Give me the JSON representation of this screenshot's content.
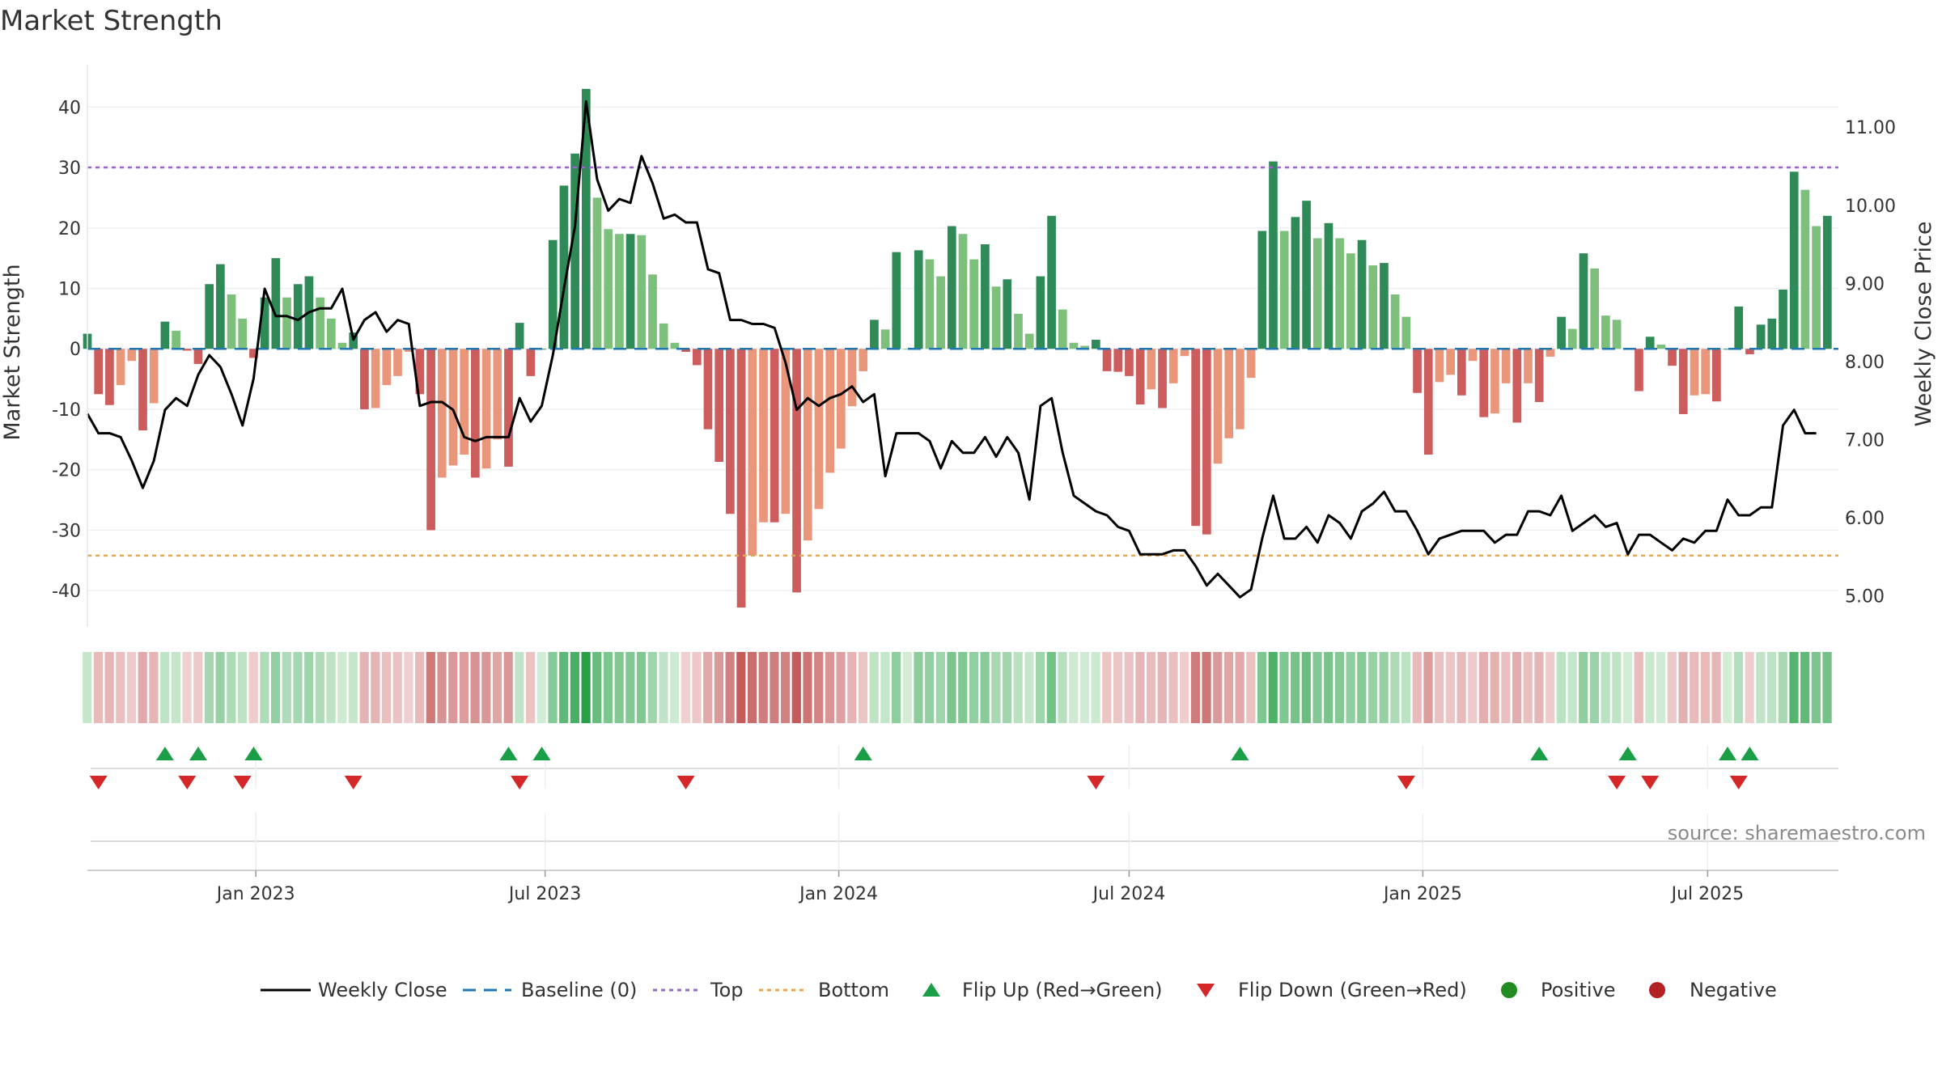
{
  "chart_data": {
    "type": "bar",
    "title": "Market Strength",
    "ylabel": "Market Strength",
    "y2label": "Weekly Close Price",
    "ylim": [
      -46,
      47
    ],
    "y2lim": [
      4.6,
      11.8
    ],
    "yticks": [
      40,
      30,
      20,
      10,
      0,
      -10,
      -20,
      -30,
      -40
    ],
    "y2ticks": [
      "11.00",
      "10.00",
      "9.00",
      "8.00",
      "7.00",
      "6.00",
      "5.00"
    ],
    "y2tick_values": [
      11,
      10,
      9,
      8,
      7,
      6,
      5
    ],
    "top_threshold": 30,
    "bottom_threshold": -34.2,
    "x_range_weeks": [
      0,
      158
    ],
    "xticks": [
      {
        "label": "Jan 2023",
        "week": 15.2
      },
      {
        "label": "Jul 2023",
        "week": 41.3
      },
      {
        "label": "Jan 2024",
        "week": 67.8
      },
      {
        "label": "Jul 2024",
        "week": 94.0
      },
      {
        "label": "Jan 2025",
        "week": 120.5
      },
      {
        "label": "Jul 2025",
        "week": 146.2
      }
    ],
    "strength": [
      2.5,
      -7.5,
      -9.3,
      -6,
      -2,
      -13.5,
      -9,
      4.5,
      3,
      -0.3,
      -2.5,
      10.7,
      14,
      9,
      5,
      -1.5,
      8.5,
      15,
      8.5,
      10.7,
      12,
      8.5,
      5,
      1,
      2.7,
      -10,
      -9.8,
      -6,
      -4.5,
      -0.5,
      -7.5,
      -30,
      -21.3,
      -19.3,
      -17.5,
      -21.3,
      -19.8,
      -15,
      -19.5,
      4.3,
      -4.5,
      0,
      18,
      27,
      32.3,
      43,
      25,
      19.8,
      19,
      19,
      18.8,
      12.3,
      4.2,
      1,
      -0.5,
      -2.7,
      -13.3,
      -18.7,
      -27.3,
      -42.8,
      -34.2,
      -28.7,
      -28.7,
      -27.3,
      -40.3,
      -31.7,
      -26.5,
      -20.5,
      -16.5,
      -9.5,
      -3.7,
      4.8,
      3.2,
      16,
      0,
      16.3,
      14.8,
      12,
      20.3,
      19,
      14.8,
      17.3,
      10.3,
      11.5,
      5.8,
      2.5,
      12,
      22,
      6.5,
      1,
      0.5,
      1.5,
      -3.7,
      -3.8,
      -4.5,
      -9.2,
      -6.7,
      -9.8,
      -5.7,
      -1.2,
      -29.3,
      -30.7,
      -19,
      -14.8,
      -13.3,
      -4.8,
      19.5,
      31,
      19.5,
      21.8,
      24.5,
      18.3,
      20.8,
      18.3,
      15.8,
      18,
      13.8,
      14.2,
      9,
      5.3,
      -7.3,
      -17.5,
      -5.5,
      -4.3,
      -7.7,
      -2,
      -11.3,
      -10.7,
      -5.7,
      -12.2,
      -5.7,
      -8.8,
      -1.3,
      5.3,
      3.3,
      15.8,
      13.3,
      5.5,
      4.8,
      0,
      -7,
      2,
      0.7,
      -2.8,
      -10.8,
      -7.7,
      -7.5,
      -8.7,
      0,
      7,
      -0.9,
      4,
      5,
      9.8,
      29.3,
      26.3,
      20.3,
      22
    ],
    "weekly_close": [
      7.33,
      7.08,
      7.08,
      7.03,
      6.73,
      6.38,
      6.73,
      7.38,
      7.53,
      7.43,
      7.83,
      8.08,
      7.93,
      7.58,
      7.18,
      7.78,
      8.93,
      8.58,
      8.58,
      8.53,
      8.63,
      8.68,
      8.68,
      8.93,
      8.28,
      8.53,
      8.63,
      8.38,
      8.53,
      8.48,
      7.43,
      7.48,
      7.48,
      7.38,
      7.03,
      6.98,
      7.03,
      7.03,
      7.03,
      7.53,
      7.23,
      7.43,
      8.08,
      8.93,
      9.73,
      11.33,
      10.33,
      9.93,
      10.08,
      10.03,
      10.63,
      10.28,
      9.83,
      9.88,
      9.78,
      9.78,
      9.18,
      9.13,
      8.53,
      8.53,
      8.48,
      8.48,
      8.43,
      7.98,
      7.38,
      7.53,
      7.43,
      7.53,
      7.58,
      7.68,
      7.48,
      7.58,
      6.53,
      7.08,
      7.08,
      7.08,
      6.98,
      6.63,
      6.98,
      6.83,
      6.83,
      7.03,
      6.78,
      7.03,
      6.83,
      6.23,
      7.43,
      7.53,
      6.83,
      6.28,
      6.18,
      6.08,
      6.03,
      5.88,
      5.83,
      5.53,
      5.53,
      5.53,
      5.58,
      5.58,
      5.38,
      5.13,
      5.28,
      5.13,
      4.98,
      5.08,
      5.73,
      6.28,
      5.73,
      5.73,
      5.88,
      5.68,
      6.03,
      5.93,
      5.73,
      6.08,
      6.18,
      6.33,
      6.08,
      6.08,
      5.83,
      5.53,
      5.73,
      5.78,
      5.83,
      5.83,
      5.83,
      5.68,
      5.78,
      5.78,
      6.08,
      6.08,
      6.03,
      6.28,
      5.83,
      5.93,
      6.03,
      5.88,
      5.93,
      5.53,
      5.78,
      5.78,
      5.68,
      5.58,
      5.73,
      5.68,
      5.83,
      5.83,
      6.23,
      6.03,
      6.03,
      6.13,
      6.13,
      7.18,
      7.38,
      7.08,
      7.08
    ],
    "flip_up_weeks": [
      7,
      10,
      15,
      38,
      41,
      70,
      104,
      131,
      139,
      148,
      150
    ],
    "flip_down_weeks": [
      1,
      9,
      14,
      24,
      39,
      54,
      91,
      119,
      138,
      141,
      149
    ],
    "legend": [
      "Weekly Close",
      "Baseline (0)",
      "Top",
      "Bottom",
      "Flip Up (Red→Green)",
      "Flip Down (Green→Red)",
      "Positive",
      "Negative"
    ],
    "annotation": "source: sharemaestro.com",
    "colors": {
      "strong_pos": "#2e8b57",
      "weak_pos": "#7cc07c",
      "strong_neg": "#cd5c5c",
      "weak_neg": "#e9967a",
      "top": "#9966cc",
      "bottom": "#e0a85a",
      "baseline": "#1f77b4",
      "close": "#000000",
      "flip_up": "#1a9e46",
      "flip_down": "#d62728",
      "positive_dot": "#228b22",
      "negative_dot": "#b22222"
    }
  }
}
